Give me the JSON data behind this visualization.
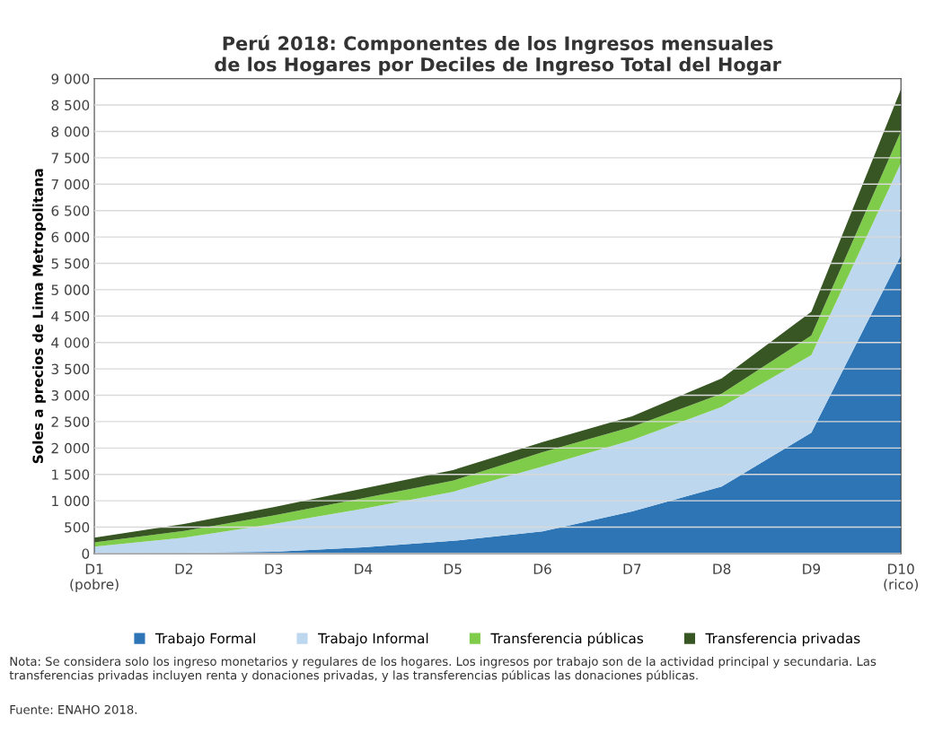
{
  "chart_data": {
    "type": "area",
    "stacked": true,
    "title": "Perú 2018: Componentes de los Ingresos mensuales\nde los Hogares por Deciles de Ingreso Total del Hogar",
    "ylabel": "Soles a precios de Lima Metropolitana",
    "categories": [
      "D1\n(pobre)",
      "D2",
      "D3",
      "D4",
      "D5",
      "D6",
      "D7",
      "D8",
      "D9",
      "D10\n(rico)"
    ],
    "series": [
      {
        "name": "Trabajo Formal",
        "color": "#2e75b6",
        "values": [
          10,
          15,
          35,
          120,
          240,
          420,
          800,
          1270,
          2290,
          5650
        ]
      },
      {
        "name": "Trabajo Informal",
        "color": "#bdd7ee",
        "values": [
          120,
          285,
          525,
          730,
          930,
          1230,
          1350,
          1510,
          1470,
          1750
        ]
      },
      {
        "name": "Transferencia públicas",
        "color": "#7fcc4b",
        "values": [
          80,
          130,
          160,
          200,
          210,
          270,
          250,
          250,
          370,
          600
        ]
      },
      {
        "name": "Transferencia privadas",
        "color": "#375623",
        "values": [
          90,
          130,
          160,
          180,
          200,
          190,
          200,
          290,
          450,
          800
        ]
      }
    ],
    "ylim": [
      0,
      9000
    ],
    "yticks": [
      0,
      500,
      {
        "value": 1000,
        "label": "1 000"
      },
      {
        "value": 1500,
        "label": "1 500"
      },
      {
        "value": 2000,
        "label": "2 000"
      },
      {
        "value": 2500,
        "label": "2 500"
      },
      {
        "value": 3000,
        "label": "3 000"
      },
      {
        "value": 3500,
        "label": "3 500"
      },
      {
        "value": 4000,
        "label": "4 000"
      },
      {
        "value": 4500,
        "label": "4 500"
      },
      {
        "value": 5000,
        "label": "5 000"
      },
      {
        "value": 5500,
        "label": "5 500"
      },
      {
        "value": 6000,
        "label": "6 000"
      },
      {
        "value": 6500,
        "label": "6 500"
      },
      {
        "value": 7000,
        "label": "7 000"
      },
      {
        "value": 7500,
        "label": "7 500"
      },
      {
        "value": 8000,
        "label": "8 000"
      },
      {
        "value": 8500,
        "label": "8 500"
      },
      {
        "value": 9000,
        "label": "9 000"
      }
    ],
    "grid": "y",
    "legend": "bottom",
    "annotations": [
      "Nota: Se considera solo los ingreso monetarios y regulares de los hogares. Los ingresos por trabajo son de la actividad principal y secundaria. Las transferencias privadas incluyen renta y donaciones privadas, y las transferencias públicas las donaciones públicas.",
      "Fuente: ENAHO 2018."
    ]
  }
}
